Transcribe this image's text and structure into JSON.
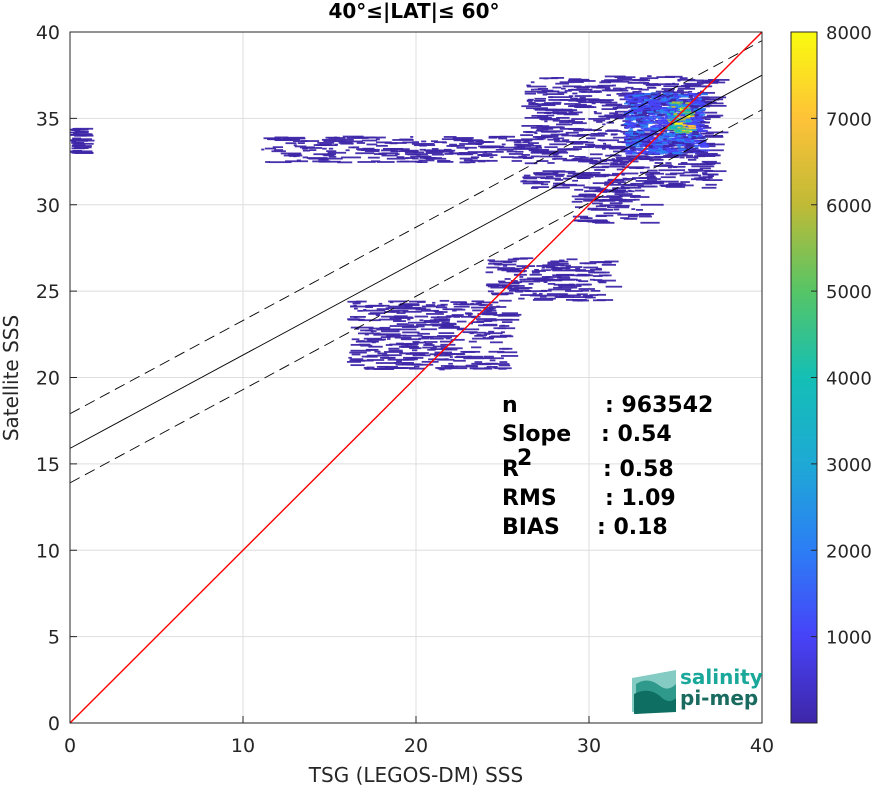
{
  "chart_data": {
    "type": "heatmap",
    "title": "40°≤|LAT|≤ 60°",
    "xlabel": "TSG (LEGOS-DM) SSS",
    "ylabel": "Satellite SSS",
    "xlim": [
      0,
      40
    ],
    "ylim": [
      0,
      40
    ],
    "xticks": [
      "0",
      "10",
      "20",
      "30",
      "40"
    ],
    "yticks": [
      "0",
      "5",
      "10",
      "15",
      "20",
      "25",
      "30",
      "35",
      "40"
    ],
    "grid": true,
    "colorbar": {
      "range": [
        0,
        8000
      ],
      "ticks": [
        "1000",
        "2000",
        "3000",
        "4000",
        "5000",
        "6000",
        "7000",
        "8000"
      ],
      "colors": [
        "#3e26a8",
        "#4743f8",
        "#2c7ef5",
        "#1ea9d5",
        "#14bfb5",
        "#56c566",
        "#c0ba36",
        "#fec238",
        "#f9fb0e"
      ]
    },
    "lines": {
      "identity": {
        "slope": 1,
        "intercept": 0,
        "color": "#ff0000"
      },
      "fit": {
        "slope": 0.54,
        "intercept": 15.9,
        "color": "#000000"
      },
      "fit_upper": {
        "slope": 0.54,
        "intercept": 17.9,
        "color": "#000000",
        "style": "dashed"
      },
      "fit_lower": {
        "slope": 0.54,
        "intercept": 13.9,
        "color": "#000000",
        "style": "dashed"
      }
    },
    "density_regions": [
      {
        "x": [
          26,
          37
        ],
        "y": [
          31,
          37.5
        ],
        "density": "low"
      },
      {
        "x": [
          32,
          36.5
        ],
        "y": [
          33,
          36.5
        ],
        "density": "medium"
      },
      {
        "x": [
          34.5,
          35.8
        ],
        "y": [
          34.2,
          36
        ],
        "density": "high"
      },
      {
        "x": [
          11,
          27
        ],
        "y": [
          32.5,
          34
        ],
        "density": "low"
      },
      {
        "x": [
          16,
          25
        ],
        "y": [
          20.5,
          24.5
        ],
        "density": "low"
      },
      {
        "x": [
          24,
          31
        ],
        "y": [
          24.5,
          27
        ],
        "density": "low"
      },
      {
        "x": [
          29,
          33
        ],
        "y": [
          29,
          31
        ],
        "density": "low"
      },
      {
        "x": [
          0,
          0.3
        ],
        "y": [
          33,
          34.5
        ],
        "density": "low"
      }
    ],
    "stats": [
      {
        "label": "n",
        "value": ": 963542"
      },
      {
        "label": "Slope",
        "value": ": 0.54"
      },
      {
        "label": "R",
        "sup": "2",
        "value": ": 0.58"
      },
      {
        "label": "RMS",
        "value": ": 1.09"
      },
      {
        "label": "BIAS",
        "value": ": 0.18"
      }
    ]
  },
  "logo": {
    "line1": "salinity",
    "line2": "pi-mep",
    "color1": "#1aa89a",
    "color2": "#1a6b5f"
  }
}
